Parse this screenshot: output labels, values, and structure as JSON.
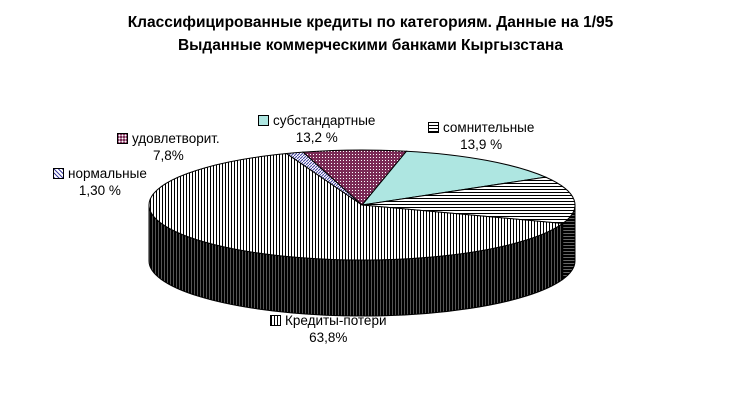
{
  "title_line1": "Классифицированные кредиты по категориям. Данные на 1/95",
  "title_line2": "Выданные коммерческими банками Кыргызстана",
  "chart_data": {
    "type": "pie",
    "title": "Классифицированные кредиты по категориям. Данные на 1/95",
    "subtitle": "Выданные коммерческими банками Кыргызстана",
    "slices": [
      {
        "key": "substandard",
        "label": "субстандартные",
        "value": 13.2,
        "value_label": "13,2 %",
        "color": "#aee6e1"
      },
      {
        "key": "doubtful",
        "label": "сомнительные",
        "value": 13.9,
        "value_label": "13,9 %",
        "color": "#ffffff"
      },
      {
        "key": "losses",
        "label": "Кредиты-потери",
        "value": 63.8,
        "value_label": "63,8%",
        "color": "#ffffff"
      },
      {
        "key": "normal",
        "label": "нормальные",
        "value": 1.3,
        "value_label": "1,30 %",
        "color": "#4040a0"
      },
      {
        "key": "satisfactory",
        "label": "удовлетворит.",
        "value": 7.8,
        "value_label": "7,8%",
        "color": "#7a2a55"
      }
    ]
  }
}
